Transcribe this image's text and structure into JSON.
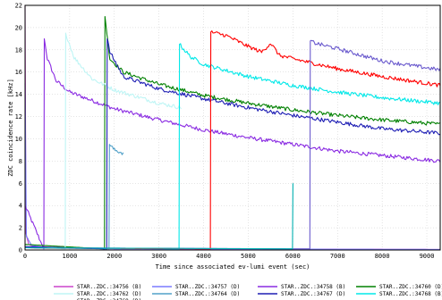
{
  "chart_data": {
    "type": "line",
    "title": "",
    "xlabel": "Time since associated ev-lumi event (sec)",
    "ylabel": "ZDC coincidence rate [kHz]",
    "xlim": [
      0,
      9300
    ],
    "ylim": [
      0,
      22
    ],
    "x_ticks": [
      0,
      1000,
      2000,
      3000,
      4000,
      5000,
      6000,
      7000,
      8000,
      9000
    ],
    "y_ticks": [
      0,
      2,
      4,
      6,
      8,
      10,
      12,
      14,
      16,
      18,
      20,
      22
    ],
    "grid": true,
    "legend_position": "bottom",
    "series": [
      {
        "name": "STAR..ZDC.:34756 (B)",
        "color": "#cc44cc",
        "points": [
          [
            0,
            22
          ],
          [
            20,
            1.5
          ],
          [
            80,
            0.5
          ],
          [
            200,
            0.3
          ],
          [
            1000,
            0.2
          ],
          [
            3000,
            0.1
          ],
          [
            9300,
            0.05
          ]
        ]
      },
      {
        "name": "STAR..ZDC.:34757 (D)",
        "color": "#7a7aff",
        "points": [
          [
            0,
            15
          ],
          [
            30,
            1.2
          ],
          [
            150,
            0.4
          ],
          [
            500,
            0.2
          ],
          [
            2000,
            0.1
          ],
          [
            9300,
            0.05
          ]
        ]
      },
      {
        "name": "STAR..ZDC.:34758 (B)",
        "color": "#8a2be2",
        "points": [
          [
            0,
            4
          ],
          [
            420,
            0.1
          ],
          [
            430,
            19.0
          ],
          [
            500,
            17.2
          ],
          [
            700,
            15.2
          ],
          [
            1000,
            14.2
          ],
          [
            2000,
            12.7
          ],
          [
            3000,
            11.7
          ],
          [
            4000,
            10.8
          ],
          [
            5000,
            10.1
          ],
          [
            6000,
            9.5
          ],
          [
            7000,
            8.9
          ],
          [
            8000,
            8.5
          ],
          [
            9300,
            8.0
          ]
        ]
      },
      {
        "name": "STAR..ZDC.:34760 (D)",
        "color": "#008000",
        "points": [
          [
            0,
            0.5
          ],
          [
            1780,
            0.1
          ],
          [
            1790,
            21.0
          ],
          [
            1900,
            17.2
          ],
          [
            2200,
            16.0
          ],
          [
            3000,
            14.9
          ],
          [
            4000,
            13.9
          ],
          [
            5000,
            13.2
          ],
          [
            6000,
            12.6
          ],
          [
            7000,
            12.1
          ],
          [
            8000,
            11.7
          ],
          [
            9300,
            11.3
          ]
        ]
      },
      {
        "name": "STAR..ZDC.:34762 (D)",
        "color": "#bff5f5",
        "points": [
          [
            0,
            0.3
          ],
          [
            900,
            0.1
          ],
          [
            910,
            19.5
          ],
          [
            1100,
            17.3
          ],
          [
            1500,
            15.4
          ],
          [
            2000,
            14.4
          ],
          [
            3000,
            13.2
          ],
          [
            3500,
            12.8
          ]
        ]
      },
      {
        "name": "STAR..ZDC.:34764 (D)",
        "color": "#50a0c8",
        "points": [
          [
            0,
            0.2
          ],
          [
            1880,
            0.1
          ],
          [
            1890,
            9.5
          ],
          [
            2000,
            9.0
          ],
          [
            2200,
            8.7
          ]
        ]
      },
      {
        "name": "STAR..ZDC.:34767 (D)",
        "color": "#1e1eb4",
        "points": [
          [
            0,
            0.3
          ],
          [
            1830,
            0.1
          ],
          [
            1840,
            19.0
          ],
          [
            1900,
            17.8
          ],
          [
            2200,
            15.6
          ],
          [
            3000,
            14.5
          ],
          [
            4000,
            13.6
          ],
          [
            5000,
            12.8
          ],
          [
            6000,
            12.1
          ],
          [
            7000,
            11.5
          ],
          [
            8000,
            10.9
          ],
          [
            9300,
            10.5
          ]
        ]
      },
      {
        "name": "STAR..ZDC.:34768 (B)",
        "color": "#00e8e8",
        "points": [
          [
            0,
            0.2
          ],
          [
            3450,
            0.1
          ],
          [
            3460,
            18.5
          ],
          [
            3700,
            17.4
          ],
          [
            4000,
            16.7
          ],
          [
            5000,
            15.6
          ],
          [
            6000,
            14.8
          ],
          [
            7000,
            14.2
          ],
          [
            8000,
            13.7
          ],
          [
            9300,
            13.2
          ]
        ]
      },
      {
        "name": "STAR..ZDC.:34769 (D)",
        "color": "#ff0000",
        "points": [
          [
            0,
            0.2
          ],
          [
            4150,
            0.1
          ],
          [
            4160,
            19.6
          ],
          [
            4500,
            19.3
          ],
          [
            5000,
            18.3
          ],
          [
            5300,
            17.8
          ],
          [
            5500,
            18.6
          ],
          [
            5700,
            17.5
          ],
          [
            6000,
            17.2
          ],
          [
            7000,
            16.3
          ],
          [
            8000,
            15.6
          ],
          [
            9300,
            14.8
          ]
        ]
      },
      {
        "name": "",
        "color": "#6a5acd",
        "points": [
          [
            0,
            0.2
          ],
          [
            6380,
            0.1
          ],
          [
            6390,
            18.8
          ],
          [
            6500,
            18.6
          ],
          [
            7000,
            18.1
          ],
          [
            8000,
            17.0
          ],
          [
            9300,
            16.2
          ]
        ]
      },
      {
        "name": "",
        "color": "#00b0b0",
        "points": [
          [
            0,
            0.2
          ],
          [
            5990,
            0.1
          ],
          [
            6000,
            6.0
          ]
        ]
      }
    ]
  }
}
